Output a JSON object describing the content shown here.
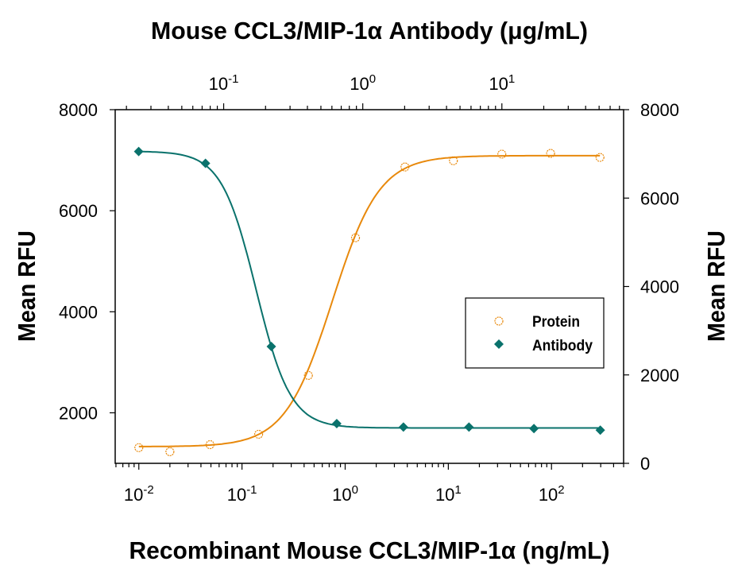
{
  "chart_data": {
    "type": "scatter",
    "title_top": "Mouse CCL3/MIP-1α Antibody (μg/mL)",
    "xlabel": "Recombinant Mouse CCL3/MIP-1α (ng/mL)",
    "ylabel_left": "Mean RFU",
    "ylabel_right": "Mean RFU",
    "x_bottom": {
      "scale": "log",
      "range": [
        0.0059,
        500
      ],
      "ticks": [
        {
          "base": "10",
          "exp": "-2",
          "value": 0.01
        },
        {
          "base": "10",
          "exp": "-1",
          "value": 0.1
        },
        {
          "base": "10",
          "exp": "0",
          "value": 1
        },
        {
          "base": "10",
          "exp": "1",
          "value": 10
        },
        {
          "base": "10",
          "exp": "2",
          "value": 100
        }
      ]
    },
    "x_top": {
      "scale": "log",
      "range": [
        0.0166,
        75
      ],
      "ticks": [
        {
          "base": "10",
          "exp": "-1",
          "value": 0.1
        },
        {
          "base": "10",
          "exp": "0",
          "value": 1
        },
        {
          "base": "10",
          "exp": "1",
          "value": 10
        }
      ]
    },
    "y_left": {
      "range": [
        1000,
        8000
      ],
      "ticks": [
        "2000",
        "4000",
        "6000",
        "8000"
      ]
    },
    "y_right": {
      "range": [
        0,
        8000
      ],
      "ticks": [
        "0",
        "2000",
        "4000",
        "6000",
        "8000"
      ]
    },
    "grid": false,
    "legend": {
      "placement": "center-right",
      "entries": [
        "Protein",
        "Antibody"
      ]
    },
    "series": [
      {
        "name": "Protein",
        "marker": "open-circle",
        "color": "#E8890C",
        "x_axis": "bottom",
        "y_axis": "left",
        "x": [
          0.01,
          0.02,
          0.049,
          0.145,
          0.44,
          1.26,
          3.8,
          11.2,
          33,
          98,
          295
        ],
        "y": [
          1310,
          1230,
          1370,
          1575,
          2740,
          5465,
          6866,
          6990,
          7120,
          7135,
          7055
        ],
        "fit": {
          "bottom": 1330,
          "top": 7090,
          "ec50": 0.75,
          "hill": 1.9
        }
      },
      {
        "name": "Antibody",
        "marker": "filled-diamond",
        "color": "#0A726C",
        "x_axis": "top",
        "y_axis": "right",
        "x": [
          0.0245,
          0.074,
          0.22,
          0.65,
          1.96,
          5.8,
          17,
          51
        ],
        "y": [
          7054,
          6786,
          2643,
          898,
          821,
          821,
          786,
          750
        ],
        "fit": {
          "bottom": 800,
          "top": 7060,
          "ec50": 0.171,
          "hill": 3.5
        }
      }
    ]
  }
}
